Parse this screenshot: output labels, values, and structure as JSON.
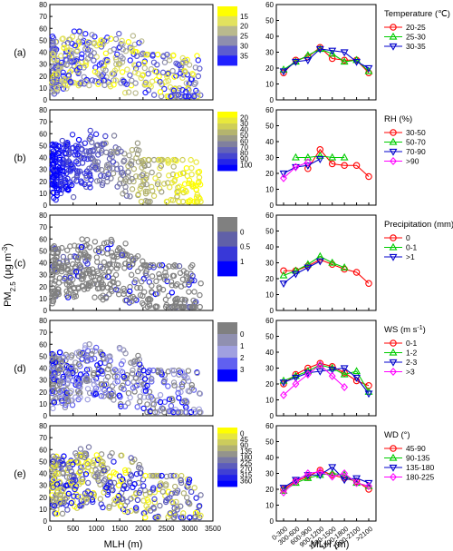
{
  "figure": {
    "y_axis_label": "PM",
    "y_axis_label_sub": "2.5",
    "y_axis_label_unit": " (μg m",
    "y_axis_label_sup": "-3",
    "y_axis_label_close": ")",
    "left_x_label": "MLH (m)",
    "right_x_label": "MLH (m)"
  },
  "chart_data": [
    {
      "type": "scatter",
      "panel": "(a)",
      "variable": "Temperature",
      "x_ticks": [
        0,
        500,
        1000,
        1500,
        2000,
        2500,
        3000,
        3500
      ],
      "xlim": [
        0,
        3500
      ],
      "ylim": [
        0,
        80
      ],
      "y_ticks": [
        0,
        10,
        20,
        30,
        40,
        50,
        60,
        70,
        80
      ],
      "colorbar": {
        "ticks": [
          "15",
          "20",
          "25",
          "30",
          "35"
        ],
        "colors": [
          "#ffff00",
          "#e2e25e",
          "#b9b98e",
          "#8e8eae",
          "#5c5cd0",
          "#2020ff"
        ]
      }
    },
    {
      "type": "line",
      "panel": "(a)",
      "legend_title": "Temperature (℃)",
      "categories": [
        "0-300",
        "300-600",
        "600-900",
        "900-1200",
        "1200-1500",
        "1500-1800",
        "1800-2100",
        ">2100"
      ],
      "ylim": [
        0,
        60
      ],
      "y_ticks": [
        0,
        10,
        20,
        30,
        40,
        50,
        60
      ],
      "series": [
        {
          "name": "20-25",
          "color": "#ff0000",
          "marker": "circle",
          "values": [
            17,
            25,
            27,
            33,
            26,
            25,
            25,
            17
          ]
        },
        {
          "name": "25-30",
          "color": "#00cc00",
          "marker": "triangle-up",
          "values": [
            19,
            24,
            28,
            32,
            29,
            24,
            25,
            18
          ]
        },
        {
          "name": "30-35",
          "color": "#0000cc",
          "marker": "triangle-down",
          "values": [
            18,
            24,
            25,
            32,
            31,
            30,
            24,
            20
          ]
        }
      ]
    },
    {
      "type": "scatter",
      "panel": "(b)",
      "variable": "RH",
      "x_ticks": [
        0,
        500,
        1000,
        1500,
        2000,
        2500,
        3000,
        3500
      ],
      "xlim": [
        0,
        3500
      ],
      "ylim": [
        0,
        80
      ],
      "y_ticks": [
        0,
        10,
        20,
        30,
        40,
        50,
        60,
        70,
        80
      ],
      "colorbar": {
        "ticks": [
          "20",
          "30",
          "40",
          "50",
          "60",
          "70",
          "80",
          "90",
          "100"
        ],
        "colors": [
          "#ffff00",
          "#e8e83c",
          "#cfcf55",
          "#b4b46e",
          "#9a9a86",
          "#80809e",
          "#6464b8",
          "#4646d0",
          "#2424e8",
          "#0000ff"
        ]
      }
    },
    {
      "type": "line",
      "panel": "(b)",
      "legend_title": "RH (%)",
      "categories": [
        "0-300",
        "300-600",
        "600-900",
        "900-1200",
        "1200-1500",
        "1500-1800",
        "1800-2100",
        ">2100"
      ],
      "ylim": [
        0,
        60
      ],
      "y_ticks": [
        0,
        10,
        20,
        30,
        40,
        50,
        60
      ],
      "series": [
        {
          "name": "30-50",
          "color": "#ff0000",
          "marker": "circle",
          "values": [
            null,
            null,
            23,
            35,
            26,
            25,
            25,
            18
          ]
        },
        {
          "name": "50-70",
          "color": "#00cc00",
          "marker": "triangle-up",
          "values": [
            null,
            30,
            30,
            31,
            30,
            30,
            null,
            null
          ]
        },
        {
          "name": "70-90",
          "color": "#0000cc",
          "marker": "triangle-down",
          "values": [
            20,
            24,
            25,
            29,
            null,
            null,
            null,
            null
          ]
        },
        {
          "name": ">90",
          "color": "#ff00ff",
          "marker": "diamond",
          "values": [
            17,
            24,
            27,
            null,
            null,
            null,
            null,
            null
          ]
        }
      ]
    },
    {
      "type": "scatter",
      "panel": "(c)",
      "variable": "Precipitation",
      "x_ticks": [
        0,
        500,
        1000,
        1500,
        2000,
        2500,
        3000,
        3500
      ],
      "xlim": [
        0,
        3500
      ],
      "ylim": [
        0,
        80
      ],
      "y_ticks": [
        0,
        10,
        20,
        30,
        40,
        50,
        60,
        70,
        80
      ],
      "colorbar": {
        "ticks": [
          "0",
          "0.5",
          "1"
        ],
        "colors": [
          "#808080",
          "#6060a8",
          "#3838d8",
          "#0000ff"
        ]
      }
    },
    {
      "type": "line",
      "panel": "(c)",
      "legend_title": "Precipitation (mm)",
      "categories": [
        "0-300",
        "300-600",
        "600-900",
        "900-1200",
        "1200-1500",
        "1500-1800",
        "1800-2100",
        ">2100"
      ],
      "ylim": [
        0,
        60
      ],
      "y_ticks": [
        0,
        10,
        20,
        30,
        40,
        50,
        60
      ],
      "series": [
        {
          "name": "0",
          "color": "#ff0000",
          "marker": "circle",
          "values": [
            25,
            25,
            28,
            32,
            29,
            26,
            24,
            17
          ]
        },
        {
          "name": "0-1",
          "color": "#00cc00",
          "marker": "triangle-up",
          "values": [
            22,
            25,
            29,
            34,
            30,
            27,
            null,
            null
          ]
        },
        {
          "name": ">1",
          "color": "#0000cc",
          "marker": "triangle-down",
          "values": [
            17,
            23,
            27,
            31,
            null,
            null,
            null,
            null
          ]
        }
      ]
    },
    {
      "type": "scatter",
      "panel": "(d)",
      "variable": "WS",
      "x_ticks": [
        0,
        500,
        1000,
        1500,
        2000,
        2500,
        3000,
        3500
      ],
      "xlim": [
        0,
        3500
      ],
      "ylim": [
        0,
        80
      ],
      "y_ticks": [
        0,
        10,
        20,
        30,
        40,
        50,
        60,
        70,
        80
      ],
      "colorbar": {
        "ticks": [
          "0",
          "1",
          "2",
          "3"
        ],
        "colors": [
          "#808080",
          "#9090b0",
          "#a0a0e0",
          "#6060f0",
          "#0000ff"
        ]
      }
    },
    {
      "type": "line",
      "panel": "(d)",
      "legend_title": "WS (m s",
      "legend_title_sup": "-1",
      "legend_title_close": ")",
      "categories": [
        "0-300",
        "300-600",
        "600-900",
        "900-1200",
        "1200-1500",
        "1500-1800",
        "1800-2100",
        ">2100"
      ],
      "ylim": [
        0,
        60
      ],
      "y_ticks": [
        0,
        10,
        20,
        30,
        40,
        50,
        60
      ],
      "series": [
        {
          "name": "0-1",
          "color": "#ff0000",
          "marker": "circle",
          "values": [
            20,
            26,
            30,
            33,
            31,
            27,
            22,
            19
          ]
        },
        {
          "name": "1-2",
          "color": "#00cc00",
          "marker": "triangle-up",
          "values": [
            22,
            25,
            28,
            32,
            30,
            26,
            28,
            15
          ]
        },
        {
          "name": "2-3",
          "color": "#0000cc",
          "marker": "triangle-down",
          "values": [
            21,
            24,
            27,
            28,
            29,
            30,
            24,
            14
          ]
        },
        {
          "name": ">3",
          "color": "#ff00ff",
          "marker": "diamond",
          "values": [
            13,
            20,
            26,
            32,
            25,
            18,
            null,
            null
          ]
        }
      ]
    },
    {
      "type": "scatter",
      "panel": "(e)",
      "variable": "WD",
      "x_ticks": [
        0,
        500,
        1000,
        1500,
        2000,
        2500,
        3000,
        3500
      ],
      "xlim": [
        0,
        3500
      ],
      "ylim": [
        0,
        80
      ],
      "y_ticks": [
        0,
        10,
        20,
        30,
        40,
        50,
        60,
        70,
        80
      ],
      "colorbar": {
        "ticks": [
          "0",
          "45",
          "90",
          "135",
          "180",
          "225",
          "270",
          "315",
          "360"
        ],
        "colors": [
          "#ffff00",
          "#e6e640",
          "#cccc5c",
          "#b0b074",
          "#94948c",
          "#7878a4",
          "#5c5cbc",
          "#4040d4",
          "#2020ea",
          "#0000ff"
        ]
      }
    },
    {
      "type": "line",
      "panel": "(e)",
      "legend_title": "WD (°)",
      "categories": [
        "0-300",
        "300-600",
        "600-900",
        "900-1200",
        "1200-1500",
        "1500-1800",
        "1800-2100",
        ">2100"
      ],
      "ylim": [
        0,
        60
      ],
      "y_ticks": [
        0,
        10,
        20,
        30,
        40,
        50,
        60
      ],
      "series": [
        {
          "name": "45-90",
          "color": "#ff0000",
          "marker": "circle",
          "values": [
            20,
            25,
            28,
            32,
            29,
            27,
            25,
            20
          ]
        },
        {
          "name": "90-135",
          "color": "#00cc00",
          "marker": "triangle-up",
          "values": [
            19,
            24,
            27,
            29,
            30,
            29,
            24,
            22
          ]
        },
        {
          "name": "135-180",
          "color": "#0000cc",
          "marker": "triangle-down",
          "values": [
            21,
            26,
            29,
            29,
            34,
            26,
            27,
            24
          ]
        },
        {
          "name": "180-225",
          "color": "#ff00ff",
          "marker": "diamond",
          "values": [
            18,
            25,
            30,
            31,
            28,
            30,
            24,
            22
          ]
        }
      ]
    }
  ]
}
